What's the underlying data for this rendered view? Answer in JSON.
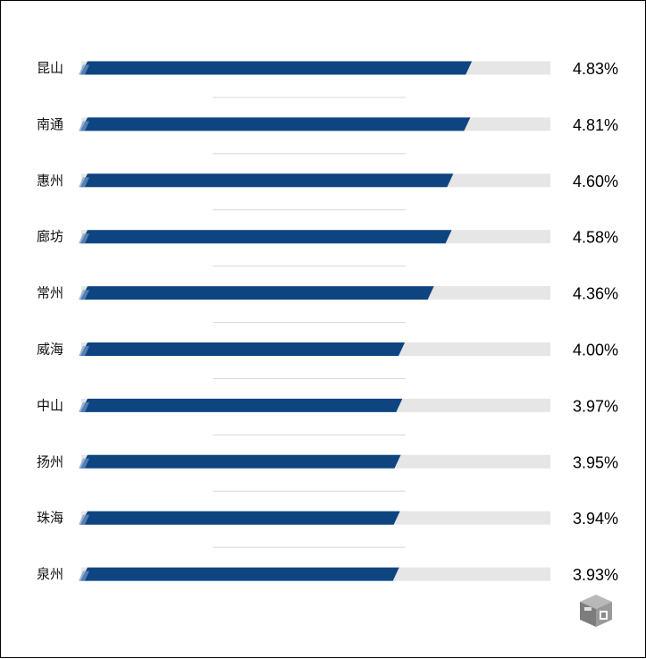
{
  "chart_data": {
    "type": "bar",
    "orientation": "horizontal",
    "categories": [
      "昆山",
      "南通",
      "惠州",
      "廊坊",
      "常州",
      "威海",
      "中山",
      "扬州",
      "珠海",
      "泉州"
    ],
    "values": [
      4.83,
      4.81,
      4.6,
      4.58,
      4.36,
      4.0,
      3.97,
      3.95,
      3.94,
      3.93
    ],
    "value_labels": [
      "4.83%",
      "4.81%",
      "4.60%",
      "4.58%",
      "4.36%",
      "4.00%",
      "3.97%",
      "3.95%",
      "3.94%",
      "3.93%"
    ],
    "title": "",
    "xlabel": "",
    "ylabel": "",
    "xlim": [
      0,
      5.8
    ],
    "grid": false,
    "legend": "none"
  },
  "colors": {
    "bar": "#0e4580",
    "track": "#e6e6e6",
    "separator": "#d8d8d8",
    "text": "#111111"
  },
  "logo": {
    "icon": "cube-logo-icon"
  }
}
